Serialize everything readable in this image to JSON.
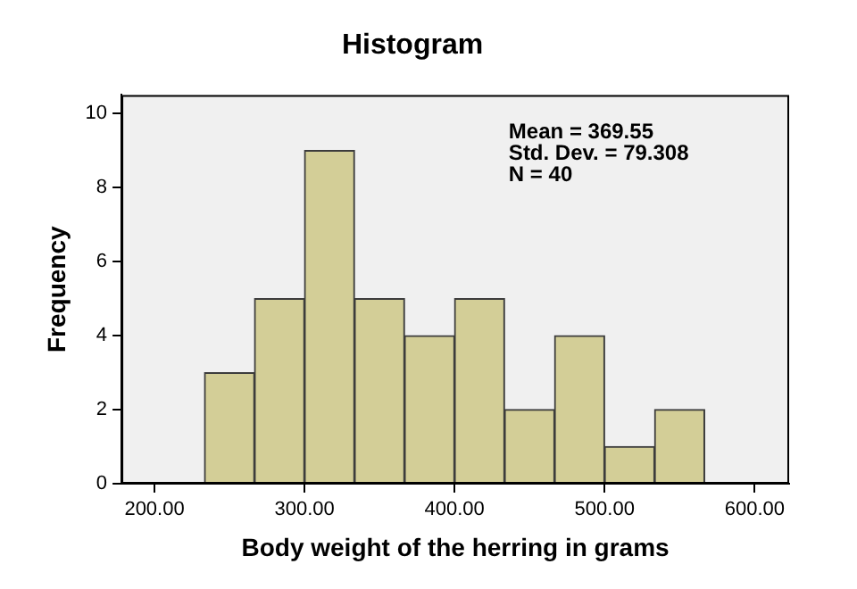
{
  "chart_data": {
    "type": "histogram",
    "title": "Histogram",
    "xlabel": "Body weight of the herring in grams",
    "ylabel": "Frequency",
    "bins": [
      233.33,
      266.67,
      300,
      333.33,
      366.67,
      400,
      433.33,
      466.67,
      500,
      533.33,
      566.67
    ],
    "values": [
      3,
      5,
      9,
      5,
      4,
      5,
      2,
      4,
      1,
      2
    ],
    "color": "#d3ce97",
    "xlim": [
      178,
      623
    ],
    "xticks": [
      {
        "value": 200,
        "label": "200.00"
      },
      {
        "value": 300,
        "label": "300.00"
      },
      {
        "value": 400,
        "label": "400.00"
      },
      {
        "value": 500,
        "label": "500.00"
      },
      {
        "value": 600,
        "label": "600.00"
      }
    ],
    "ylim": [
      0,
      10.5
    ],
    "yticks": [
      0,
      2,
      4,
      6,
      8,
      10
    ],
    "annotations": [
      "Mean = 369.55",
      "Std. Dev. = 79.308",
      "N = 40"
    ],
    "grid": false,
    "legend": false
  }
}
